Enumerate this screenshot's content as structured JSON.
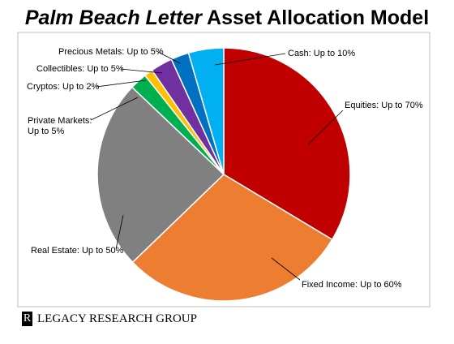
{
  "chart_data": {
    "type": "pie",
    "title_emphasis": "Palm Beach Letter",
    "title": "Asset Allocation Model",
    "categories": [
      "Equities: Up to 70%",
      "Fixed Income: Up to 60%",
      "Real Estate: Up to 50%",
      "Private Markets: Up to 5%",
      "Cryptos: Up to 2%",
      "Collectibles: Up to 5%",
      "Precious Metals: Up to 5%",
      "Cash: Up to 10%"
    ],
    "values": [
      33.6,
      29.2,
      24.3,
      2.2,
      1.1,
      2.8,
      2.3,
      4.5
    ],
    "colors": [
      "#c00000",
      "#ed7d31",
      "#808080",
      "#00b050",
      "#ffc000",
      "#7030a0",
      "#0070c0",
      "#00b0f0"
    ]
  },
  "footer": {
    "logo_mark": "R",
    "text": "LEGACY RESEARCH GROUP"
  }
}
